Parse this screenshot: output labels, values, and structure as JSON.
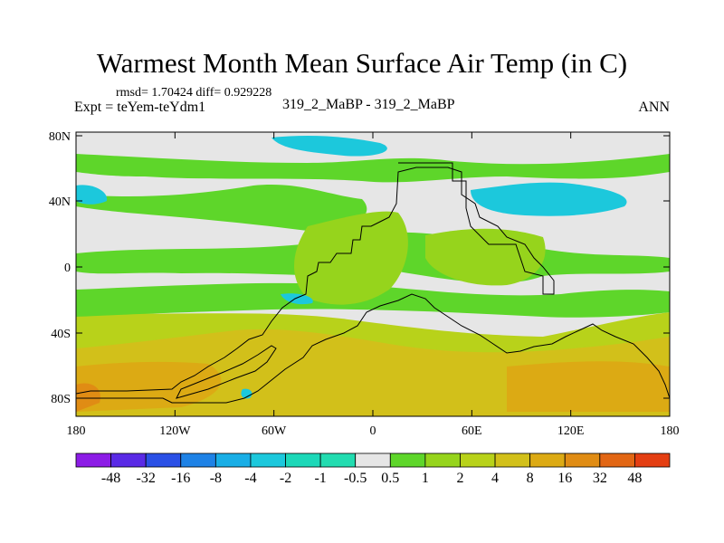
{
  "title": "Warmest Month Mean Surface Air Temp (in C)",
  "stats": "rmsd= 1.70424  diff= 0.929228",
  "experiment": "Expt = teYem-teYdm1",
  "runs": "319_2_MaBP - 319_2_MaBP",
  "period": "ANN",
  "axes": {
    "x_ticks": [
      "180",
      "120W",
      "60W",
      "0",
      "60E",
      "120E",
      "180"
    ],
    "y_ticks": [
      "80N",
      "40N",
      "0",
      "40S",
      "80S"
    ]
  },
  "colorbar": {
    "colors": [
      "#8c1ce6",
      "#5a2ae6",
      "#2a50e6",
      "#1e82e6",
      "#19aee6",
      "#1cc8dc",
      "#1cd8b8",
      "#22dcb0",
      "#e6e6e6",
      "#5ed62a",
      "#96d41c",
      "#b8d21a",
      "#d2c01a",
      "#dcaa14",
      "#e08c14",
      "#e26614",
      "#e43e12"
    ],
    "labels": [
      "-48",
      "-32",
      "-16",
      "-8",
      "-4",
      "-2",
      "-1",
      "-0.5",
      "0.5",
      "1",
      "2",
      "4",
      "8",
      "16",
      "32",
      "48"
    ]
  },
  "field_colors": {
    "neutral": "#e6e6e6",
    "slight_warm": "#5ed62a",
    "warm1": "#96d41c",
    "warm2": "#b8d21a",
    "warm4": "#d2c01a",
    "warm8": "#dcaa14",
    "warm16": "#e08c14",
    "cool": "#1cc8dc"
  }
}
